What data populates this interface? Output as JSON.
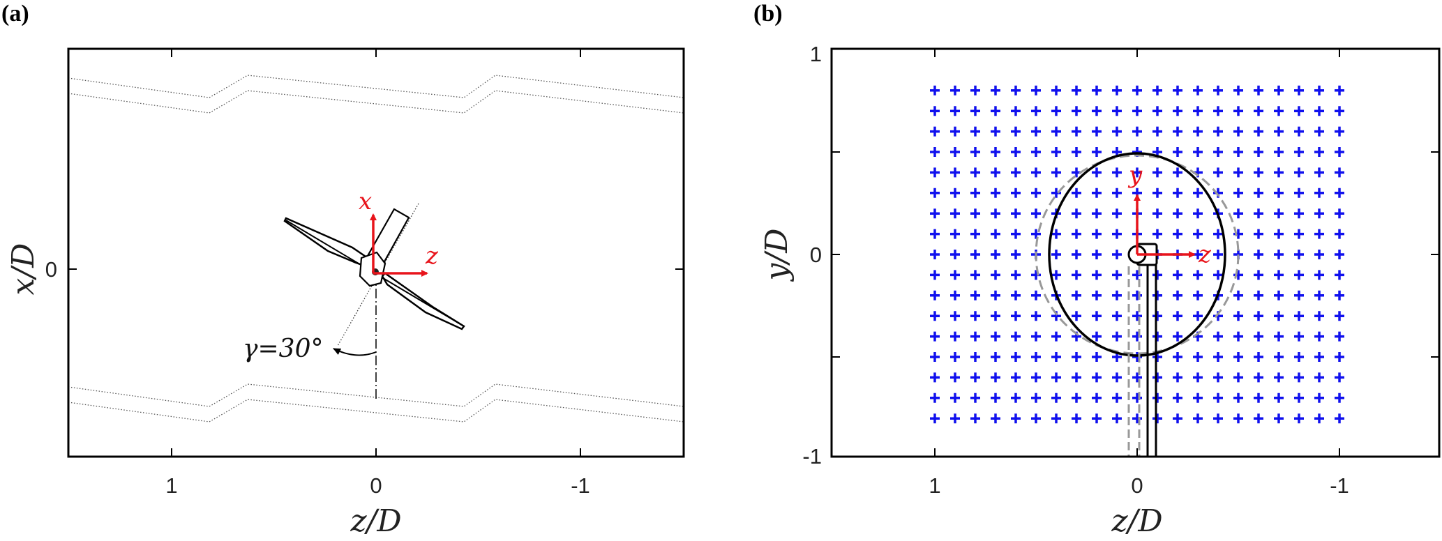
{
  "panels": [
    {
      "id": "a",
      "label": "(a)",
      "xlabel": "z/D",
      "ylabel": "x/D",
      "x_ticks": [
        {
          "value": 1,
          "label": "1"
        },
        {
          "value": 0,
          "label": "0"
        },
        {
          "value": -1,
          "label": "-1"
        }
      ],
      "y_ticks": [
        {
          "value": 0,
          "label": "0"
        }
      ],
      "axes_labels": {
        "x_arrow": "x",
        "z_arrow": "z"
      },
      "yaw_label": "γ=30°"
    },
    {
      "id": "b",
      "label": "(b)",
      "xlabel": "z/D",
      "ylabel": "y/D",
      "x_ticks": [
        {
          "value": 1,
          "label": "1"
        },
        {
          "value": 0,
          "label": "0"
        },
        {
          "value": -1,
          "label": "-1"
        }
      ],
      "y_ticks": [
        {
          "value": 1,
          "label": "1"
        },
        {
          "value": 0,
          "label": "0"
        },
        {
          "value": -1,
          "label": "-1"
        }
      ],
      "axes_labels": {
        "y_arrow": "y",
        "z_arrow": "z"
      },
      "grid": {
        "z_range": [
          1.0,
          -1.0
        ],
        "y_range": [
          0.8,
          -0.8
        ],
        "count_z": 21,
        "count_y": 17,
        "color": "#1010ee"
      }
    }
  ],
  "colors": {
    "frame": "#000000",
    "arrows": "#e8141b",
    "dashed_rotor": "#999999"
  }
}
